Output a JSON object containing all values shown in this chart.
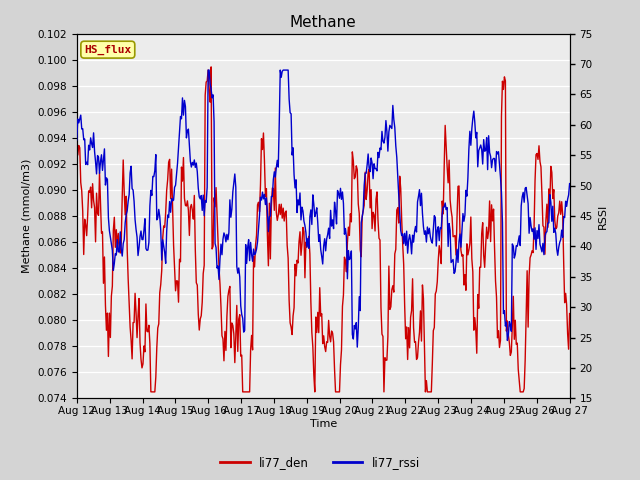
{
  "title": "Methane",
  "xlabel": "Time",
  "ylabel_left": "Methane (mmol/m3)",
  "ylabel_right": "RSSI",
  "ylim_left": [
    0.074,
    0.102
  ],
  "ylim_right": [
    15,
    75
  ],
  "yticks_left": [
    0.074,
    0.076,
    0.078,
    0.08,
    0.082,
    0.084,
    0.086,
    0.088,
    0.09,
    0.092,
    0.094,
    0.096,
    0.098,
    0.1,
    0.102
  ],
  "yticks_right": [
    15,
    20,
    25,
    30,
    35,
    40,
    45,
    50,
    55,
    60,
    65,
    70,
    75
  ],
  "xtick_labels": [
    "Aug 12",
    "Aug 13",
    "Aug 14",
    "Aug 15",
    "Aug 16",
    "Aug 17",
    "Aug 18",
    "Aug 19",
    "Aug 20",
    "Aug 21",
    "Aug 22",
    "Aug 23",
    "Aug 24",
    "Aug 25",
    "Aug 26",
    "Aug 27"
  ],
  "color_red": "#cc0000",
  "color_blue": "#0000cc",
  "line_width": 1.0,
  "fig_bg_color": "#d4d4d4",
  "plot_bg_color": "#ececec",
  "annotation_text": "HS_flux",
  "annotation_fg": "#aa0000",
  "annotation_bg": "#ffffaa",
  "annotation_border": "#999900",
  "legend_labels": [
    "li77_den",
    "li77_rssi"
  ],
  "title_fontsize": 11,
  "axis_fontsize": 8,
  "tick_fontsize": 7.5
}
